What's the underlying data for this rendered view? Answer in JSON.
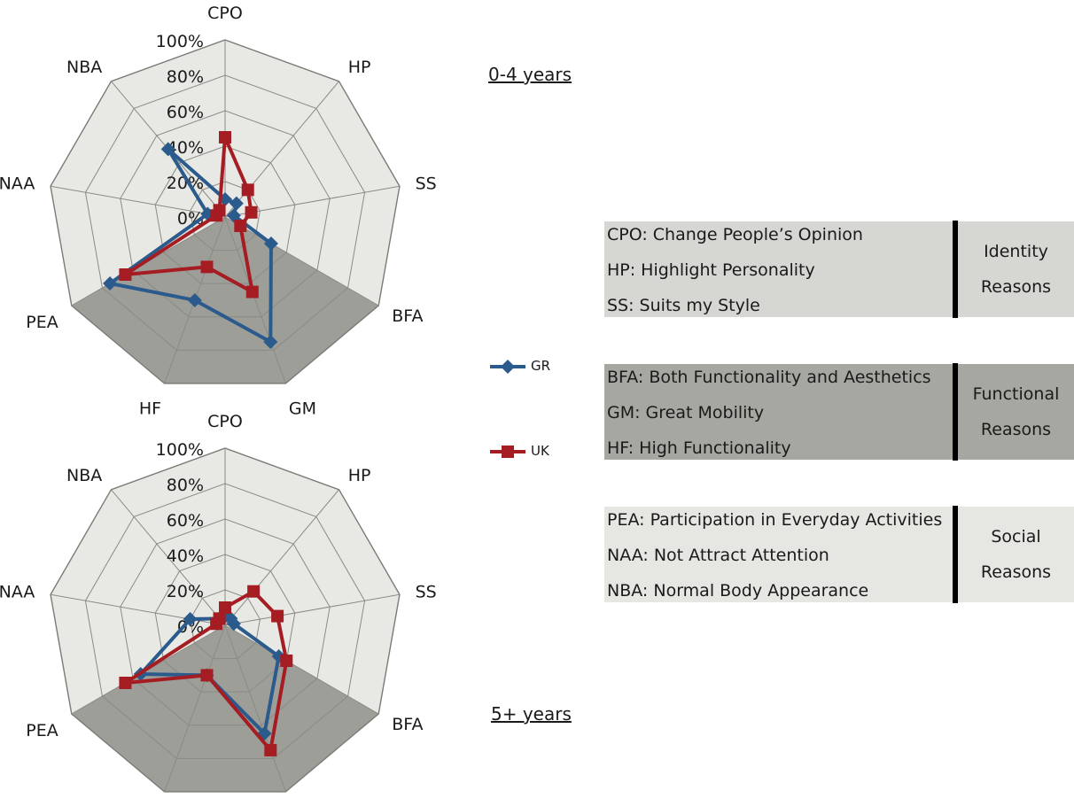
{
  "colors": {
    "GR": "#2a5b8c",
    "UK": "#a51d22",
    "identity_bg": "#d6d6d2",
    "functional_bg": "#a7a7a2",
    "social_bg": "#e6e6e2",
    "radar_light": "#e8e8e4",
    "radar_dark": "#9e9e99"
  },
  "chart_data": [
    {
      "type": "radar",
      "title": "0-4 years",
      "axes": [
        "CPO",
        "HP",
        "SS",
        "BFA",
        "GM",
        "HF",
        "PEA",
        "NAA",
        "NBA"
      ],
      "tick_labels": [
        "0%",
        "20%",
        "40%",
        "60%",
        "80%",
        "100%"
      ],
      "range": [
        0,
        100
      ],
      "grid": true,
      "series": [
        {
          "name": "GR",
          "values": [
            10,
            10,
            5,
            30,
            75,
            50,
            75,
            10,
            50
          ]
        },
        {
          "name": "UK",
          "values": [
            45,
            20,
            15,
            10,
            45,
            30,
            65,
            5,
            5
          ]
        }
      ]
    },
    {
      "type": "radar",
      "title": "5+ years",
      "axes": [
        "CPO",
        "HP",
        "SS",
        "BFA",
        "GM",
        "HF",
        "PEA",
        "NAA",
        "NBA"
      ],
      "tick_labels": [
        "0%",
        "20%",
        "40%",
        "60%",
        "80%",
        "100%"
      ],
      "range": [
        0,
        100
      ],
      "grid": true,
      "series": [
        {
          "name": "GR",
          "values": [
            5,
            5,
            5,
            35,
            65,
            30,
            55,
            20,
            5
          ]
        },
        {
          "name": "UK",
          "values": [
            10,
            25,
            30,
            40,
            75,
            30,
            65,
            5,
            5
          ]
        }
      ]
    }
  ],
  "legend": [
    {
      "name": "GR",
      "marker": "diamond"
    },
    {
      "name": "UK",
      "marker": "square"
    }
  ],
  "groups": [
    {
      "id": "identity",
      "reason_lines": [
        "Identity",
        "Reasons"
      ],
      "items": [
        "CPO: Change People’s Opinion",
        "HP: Highlight Personality",
        "SS: Suits my Style"
      ]
    },
    {
      "id": "functional",
      "reason_lines": [
        "Functional",
        "Reasons"
      ],
      "items": [
        "BFA: Both Functionality and Aesthetics",
        "GM: Great Mobility",
        "HF: High Functionality"
      ]
    },
    {
      "id": "social",
      "reason_lines": [
        "Social",
        "Reasons"
      ],
      "items": [
        "PEA: Participation in Everyday Activities",
        "NAA: Not Attract Attention",
        "NBA: Normal Body Appearance"
      ]
    }
  ]
}
